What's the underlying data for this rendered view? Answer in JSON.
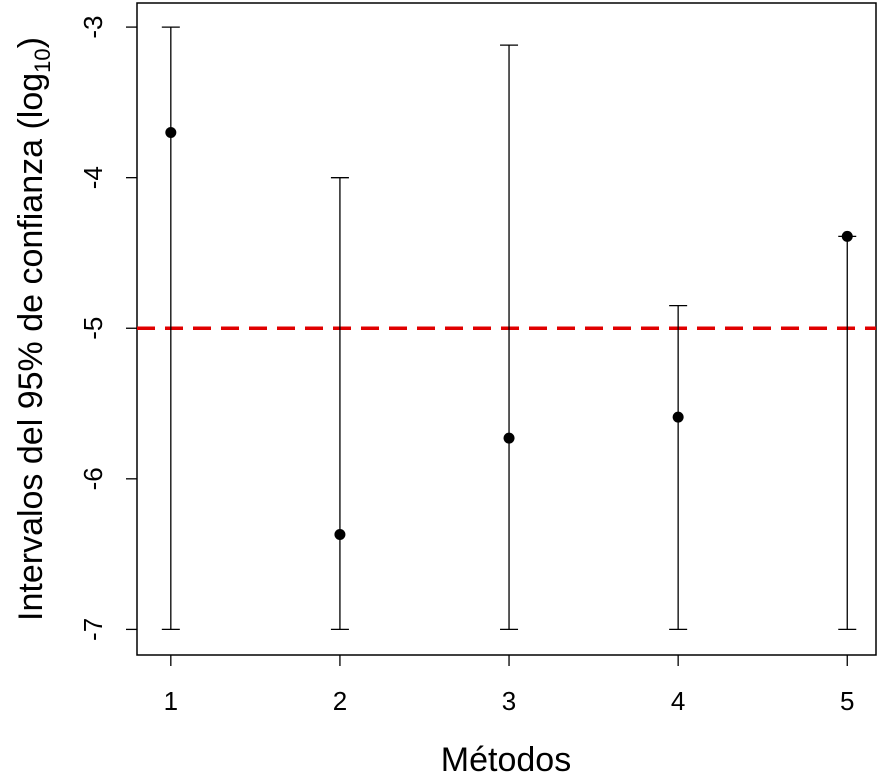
{
  "chart_data": {
    "type": "errorbar",
    "xlabel": "Métodos",
    "ylabel_main": "Intervalos del 95% de confianza (log",
    "ylabel_sub": "10",
    "ylabel_close": ")",
    "x": [
      1,
      2,
      3,
      4,
      5
    ],
    "x_tick_labels": [
      "1",
      "2",
      "3",
      "4",
      "5"
    ],
    "y_ticks": [
      -3,
      -4,
      -5,
      -6,
      -7
    ],
    "y_tick_labels": [
      "-3",
      "-4",
      "-5",
      "-6",
      "-7"
    ],
    "xlim": [
      0.8,
      5.17
    ],
    "ylim": [
      -7.17,
      -2.84
    ],
    "points": [
      {
        "x": 1,
        "y": -3.7,
        "lower": -7,
        "upper": -3.0
      },
      {
        "x": 2,
        "y": -6.37,
        "lower": -7,
        "upper": -4.0
      },
      {
        "x": 3,
        "y": -5.73,
        "lower": -7,
        "upper": -3.12
      },
      {
        "x": 4,
        "y": -5.59,
        "lower": -7,
        "upper": -4.85
      },
      {
        "x": 5,
        "y": -4.39,
        "lower": -7,
        "upper": -4.39
      }
    ],
    "reference_line": {
      "y": -5,
      "color": "#e00000",
      "style": "dashed"
    },
    "point_color": "#000000",
    "grid": false
  }
}
